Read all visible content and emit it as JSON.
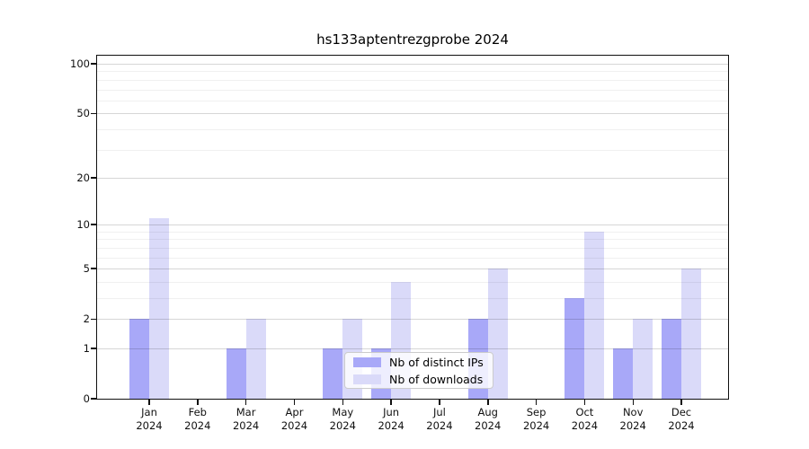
{
  "chart_data": {
    "type": "bar",
    "title": "hs133aptentrezgprobe 2024",
    "x_year": "2024",
    "categories": [
      "Jan",
      "Feb",
      "Mar",
      "Apr",
      "May",
      "Jun",
      "Jul",
      "Aug",
      "Sep",
      "Oct",
      "Nov",
      "Dec"
    ],
    "series": [
      {
        "name": "Nb of distinct IPs",
        "color": "#a8a8f8",
        "values": [
          2,
          0,
          1,
          0,
          1,
          1,
          0,
          2,
          0,
          3,
          1,
          2
        ]
      },
      {
        "name": "Nb of downloads",
        "color": "#dadaf9",
        "values": [
          11,
          0,
          2,
          0,
          2,
          4,
          0,
          5,
          0,
          9,
          2,
          5
        ]
      }
    ],
    "scale": "log1p",
    "ylim": [
      0,
      100
    ],
    "y_major_ticks": [
      0,
      1,
      2,
      5,
      10,
      20,
      50,
      100
    ],
    "y_minor_ticks": [
      3,
      4,
      6,
      7,
      8,
      9,
      30,
      40,
      60,
      70,
      80,
      90
    ],
    "grid": "horizontal",
    "legend_position": "inside lower right",
    "colors": {
      "background": "#ffffff",
      "axis": "#101010",
      "grid_major": "#d9d9d9",
      "grid_minor": "#f0f0f0",
      "legend_border": "#cccccc"
    }
  }
}
